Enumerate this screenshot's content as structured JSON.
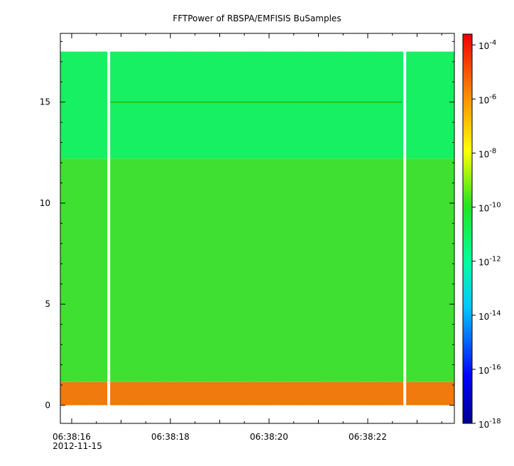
{
  "chart_data": {
    "type": "heatmap",
    "title": "FFTPower of RBSPA/EMFISIS  BuSamples",
    "xlabel": "",
    "ylabel": "",
    "x_tick_labels": [
      "06:38:16",
      "06:38:18",
      "06:38:20",
      "06:38:22"
    ],
    "x_date_label": "2012-11-15",
    "y_tick_labels": [
      "0",
      "5",
      "10",
      "15"
    ],
    "y_ticks": [
      0,
      5,
      10,
      15
    ],
    "ylim": [
      -0.9,
      18.4
    ],
    "data_ylim": [
      0,
      17.5
    ],
    "gaps_x_seconds_after_161": [
      0.75,
      6.75
    ],
    "bands": [
      {
        "y_from": 0.0,
        "y_to": 1.15,
        "log10_power": -7.0,
        "color": "#f07a10"
      },
      {
        "y_from": 1.15,
        "y_to": 12.2,
        "log10_power": -11.2,
        "color": "#3fe033"
      },
      {
        "y_from": 12.2,
        "y_to": 17.5,
        "log10_power": -12.4,
        "color": "#19f064"
      }
    ],
    "line_feature": {
      "y": 15.0,
      "log10_power": -11.0
    },
    "colorbar": {
      "scale": "log",
      "range": [
        -18,
        -3.6
      ],
      "tick_labels": [
        {
          "base": "10",
          "exp": "-4"
        },
        {
          "base": "10",
          "exp": "-6"
        },
        {
          "base": "10",
          "exp": "-8"
        },
        {
          "base": "10",
          "exp": "-10"
        },
        {
          "base": "10",
          "exp": "-12"
        },
        {
          "base": "10",
          "exp": "-14"
        },
        {
          "base": "10",
          "exp": "-16"
        },
        {
          "base": "10",
          "exp": "-18"
        }
      ],
      "tick_values": [
        -4,
        -6,
        -8,
        -10,
        -12,
        -14,
        -16,
        -18
      ]
    }
  }
}
